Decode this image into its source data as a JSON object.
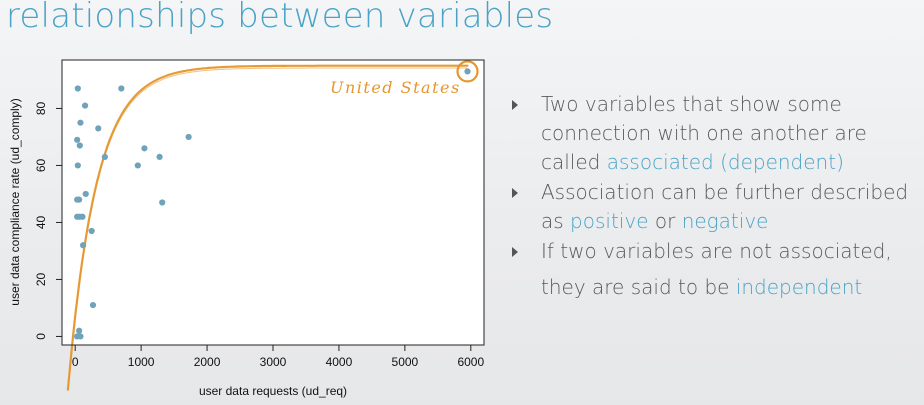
{
  "slide": {
    "title": "relationships between variables"
  },
  "bullets": [
    {
      "pre": "Two variables that show some connection with one another are called ",
      "em": "associated (dependent)"
    },
    {
      "pre": "Association can be further described as ",
      "em1": "positive",
      "mid": " or ",
      "em2": "negative"
    },
    {
      "line1": "If two variables are not associated, ",
      "line2": "they are said to be ",
      "em": "independent"
    }
  ],
  "colors": {
    "accent": "#4aa3c6",
    "curve": "#e6962c",
    "point": "#6fa3ba"
  },
  "chart_data": {
    "type": "scatter",
    "xlabel": "user data requests (ud_req)",
    "ylabel": "user data compliance rate (ud_comply)",
    "xlim": [
      -200,
      6200
    ],
    "ylim": [
      -3,
      97
    ],
    "xticks": [
      0,
      1000,
      2000,
      3000,
      4000,
      5000,
      6000
    ],
    "yticks": [
      0,
      20,
      40,
      60,
      80
    ],
    "grid": false,
    "annotation": {
      "text": "United States",
      "x": 5950,
      "y": 93
    },
    "trend": "saturating curve",
    "points": [
      [
        40,
        87
      ],
      [
        80,
        75
      ],
      [
        150,
        81
      ],
      [
        350,
        73
      ],
      [
        700,
        87
      ],
      [
        30,
        69
      ],
      [
        70,
        67
      ],
      [
        40,
        60
      ],
      [
        30,
        48
      ],
      [
        60,
        48
      ],
      [
        160,
        50
      ],
      [
        30,
        42
      ],
      [
        70,
        42
      ],
      [
        110,
        42
      ],
      [
        250,
        37
      ],
      [
        120,
        32
      ],
      [
        450,
        63
      ],
      [
        950,
        60
      ],
      [
        1050,
        66
      ],
      [
        1280,
        63
      ],
      [
        1720,
        70
      ],
      [
        1320,
        47
      ],
      [
        270,
        11
      ],
      [
        60,
        2
      ],
      [
        30,
        0
      ],
      [
        80,
        0
      ],
      [
        5950,
        93
      ]
    ]
  }
}
